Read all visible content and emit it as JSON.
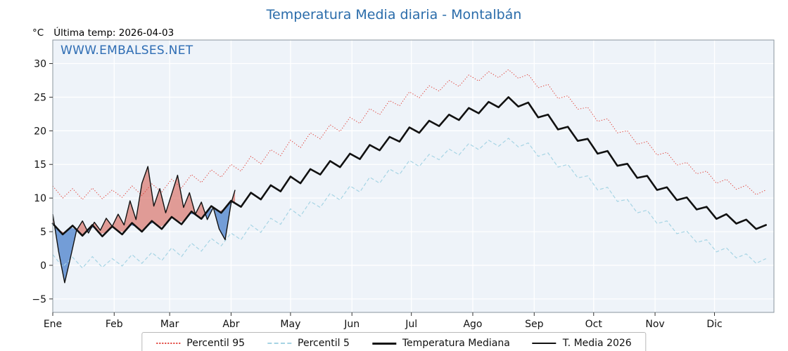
{
  "title": "Temperatura Media diaria - Montalbán",
  "y_axis_unit": "°C",
  "last_temp": "Última temp: 2026-04-03",
  "watermark": "WWW.EMBALSES.NET",
  "legend": [
    "Percentil 95",
    "Percentil 5",
    "Temperatura Mediana",
    "T. Media 2026"
  ],
  "colors": {
    "title": "#2a6caa",
    "watermark": "#2e6db4",
    "axis_text": "#111111",
    "frame": "#8a969e"
  },
  "chart_data": {
    "type": "line",
    "title": "Temperatura Media diaria - Montalbán",
    "xlabel": "",
    "ylabel": "°C",
    "x_unit": "day_of_year",
    "ylim": [
      -7,
      33.5
    ],
    "y_ticks": [
      -5,
      0,
      5,
      10,
      15,
      20,
      25,
      30
    ],
    "x_ticks": [
      {
        "label": "Ene",
        "day": 1
      },
      {
        "label": "Feb",
        "day": 32
      },
      {
        "label": "Mar",
        "day": 60
      },
      {
        "label": "Abr",
        "day": 91
      },
      {
        "label": "May",
        "day": 121
      },
      {
        "label": "Jun",
        "day": 152
      },
      {
        "label": "Jul",
        "day": 182
      },
      {
        "label": "Ago",
        "day": 213
      },
      {
        "label": "Sep",
        "day": 244
      },
      {
        "label": "Oct",
        "day": 274
      },
      {
        "label": "Nov",
        "day": 305
      },
      {
        "label": "Dic",
        "day": 335
      }
    ],
    "grid": true,
    "plot_bg": "#eef3f9",
    "grid_color": "#ffffff",
    "legend_position": "bottom-center",
    "fill_above_color": "rgba(213,82,70,0.55)",
    "fill_below_color": "rgba(49,110,196,0.65)",
    "series": [
      {
        "name": "Percentil 95",
        "style": "dotted",
        "color": "#e04038",
        "width": 1,
        "days": [
          1,
          6,
          11,
          16,
          21,
          26,
          31,
          36,
          41,
          46,
          51,
          56,
          61,
          66,
          71,
          76,
          81,
          86,
          91,
          96,
          101,
          106,
          111,
          116,
          121,
          126,
          131,
          136,
          141,
          146,
          151,
          156,
          161,
          166,
          171,
          176,
          181,
          186,
          191,
          196,
          201,
          206,
          211,
          216,
          221,
          226,
          231,
          236,
          241,
          246,
          251,
          256,
          261,
          266,
          271,
          276,
          281,
          286,
          291,
          296,
          301,
          306,
          311,
          316,
          321,
          326,
          331,
          336,
          341,
          346,
          351,
          356,
          361
        ],
        "values": [
          11.8,
          10.0,
          11.4,
          9.8,
          11.5,
          9.9,
          11.2,
          10.1,
          11.8,
          10.4,
          12.1,
          10.9,
          12.8,
          11.5,
          13.5,
          12.3,
          14.2,
          13.1,
          15.0,
          14.0,
          16.2,
          15.1,
          17.2,
          16.3,
          18.6,
          17.5,
          19.7,
          18.8,
          20.9,
          19.9,
          22.0,
          21.1,
          23.3,
          22.4,
          24.5,
          23.7,
          25.8,
          24.9,
          26.7,
          25.9,
          27.5,
          26.6,
          28.3,
          27.4,
          28.8,
          27.9,
          29.1,
          27.8,
          28.4,
          26.4,
          26.9,
          24.8,
          25.2,
          23.2,
          23.5,
          21.4,
          21.8,
          19.7,
          20.0,
          18.0,
          18.4,
          16.4,
          16.8,
          14.9,
          15.3,
          13.6,
          14.0,
          12.2,
          12.8,
          11.3,
          11.9,
          10.5,
          11.2
        ]
      },
      {
        "name": "Percentil 5",
        "style": "dashed",
        "color": "#a6d4e4",
        "width": 1.2,
        "days": [
          1,
          6,
          11,
          16,
          21,
          26,
          31,
          36,
          41,
          46,
          51,
          56,
          61,
          66,
          71,
          76,
          81,
          86,
          91,
          96,
          101,
          106,
          111,
          116,
          121,
          126,
          131,
          136,
          141,
          146,
          151,
          156,
          161,
          166,
          171,
          176,
          181,
          186,
          191,
          196,
          201,
          206,
          211,
          216,
          221,
          226,
          231,
          236,
          241,
          246,
          251,
          256,
          261,
          266,
          271,
          276,
          281,
          286,
          291,
          296,
          301,
          306,
          311,
          316,
          321,
          326,
          331,
          336,
          341,
          346,
          351,
          356,
          361
        ],
        "values": [
          1.6,
          -0.2,
          1.2,
          -0.4,
          1.3,
          -0.3,
          1.0,
          -0.1,
          1.6,
          0.3,
          1.9,
          0.7,
          2.6,
          1.3,
          3.3,
          2.1,
          4.0,
          2.9,
          4.8,
          3.8,
          6.0,
          4.9,
          7.0,
          6.1,
          8.4,
          7.3,
          9.5,
          8.6,
          10.7,
          9.7,
          11.8,
          10.9,
          13.1,
          12.2,
          14.3,
          13.5,
          15.6,
          14.7,
          16.5,
          15.7,
          17.3,
          16.4,
          18.1,
          17.2,
          18.6,
          17.7,
          18.9,
          17.6,
          18.2,
          16.2,
          16.7,
          14.6,
          15.0,
          13.0,
          13.3,
          11.2,
          11.6,
          9.5,
          9.8,
          7.8,
          8.2,
          6.2,
          6.6,
          4.7,
          5.1,
          3.4,
          3.8,
          2.0,
          2.6,
          1.1,
          1.7,
          0.3,
          1.0
        ]
      },
      {
        "name": "Temperatura Mediana",
        "style": "solid-thick",
        "color": "#111111",
        "width": 2.6,
        "days": [
          1,
          6,
          11,
          16,
          21,
          26,
          31,
          36,
          41,
          46,
          51,
          56,
          61,
          66,
          71,
          76,
          81,
          86,
          91,
          96,
          101,
          106,
          111,
          116,
          121,
          126,
          131,
          136,
          141,
          146,
          151,
          156,
          161,
          166,
          171,
          176,
          181,
          186,
          191,
          196,
          201,
          206,
          211,
          216,
          221,
          226,
          231,
          236,
          241,
          246,
          251,
          256,
          261,
          266,
          271,
          276,
          281,
          286,
          291,
          296,
          301,
          306,
          311,
          316,
          321,
          326,
          331,
          336,
          341,
          346,
          351,
          356,
          361
        ],
        "values": [
          6.2,
          4.6,
          5.9,
          4.4,
          6.0,
          4.3,
          5.8,
          4.6,
          6.3,
          5.0,
          6.6,
          5.4,
          7.2,
          6.1,
          8.0,
          6.9,
          8.8,
          7.8,
          9.6,
          8.7,
          10.8,
          9.8,
          11.9,
          11.0,
          13.2,
          12.2,
          14.3,
          13.5,
          15.5,
          14.6,
          16.6,
          15.8,
          17.9,
          17.1,
          19.1,
          18.4,
          20.5,
          19.7,
          21.5,
          20.7,
          22.4,
          21.6,
          23.4,
          22.6,
          24.3,
          23.5,
          25.0,
          23.6,
          24.2,
          22.0,
          22.4,
          20.2,
          20.6,
          18.5,
          18.8,
          16.6,
          17.0,
          14.8,
          15.1,
          13.0,
          13.3,
          11.2,
          11.6,
          9.7,
          10.1,
          8.3,
          8.7,
          6.9,
          7.6,
          6.2,
          6.8,
          5.4,
          6.0
        ]
      },
      {
        "name": "T. Media 2026",
        "style": "solid-thin",
        "color": "#111111",
        "width": 1.4,
        "days": [
          1,
          4,
          7,
          10,
          13,
          16,
          19,
          22,
          25,
          28,
          31,
          34,
          37,
          40,
          43,
          46,
          49,
          52,
          55,
          58,
          61,
          64,
          67,
          70,
          73,
          76,
          79,
          82,
          85,
          88,
          91,
          93
        ],
        "values": [
          7.6,
          2.0,
          -2.6,
          1.2,
          5.2,
          6.6,
          4.8,
          6.4,
          5.2,
          7.0,
          5.8,
          7.6,
          6.0,
          9.6,
          6.8,
          12.2,
          14.7,
          8.8,
          11.4,
          7.8,
          10.6,
          13.4,
          8.6,
          10.8,
          7.6,
          9.4,
          6.8,
          8.6,
          5.4,
          3.8,
          9.2,
          11.2
        ]
      }
    ]
  }
}
